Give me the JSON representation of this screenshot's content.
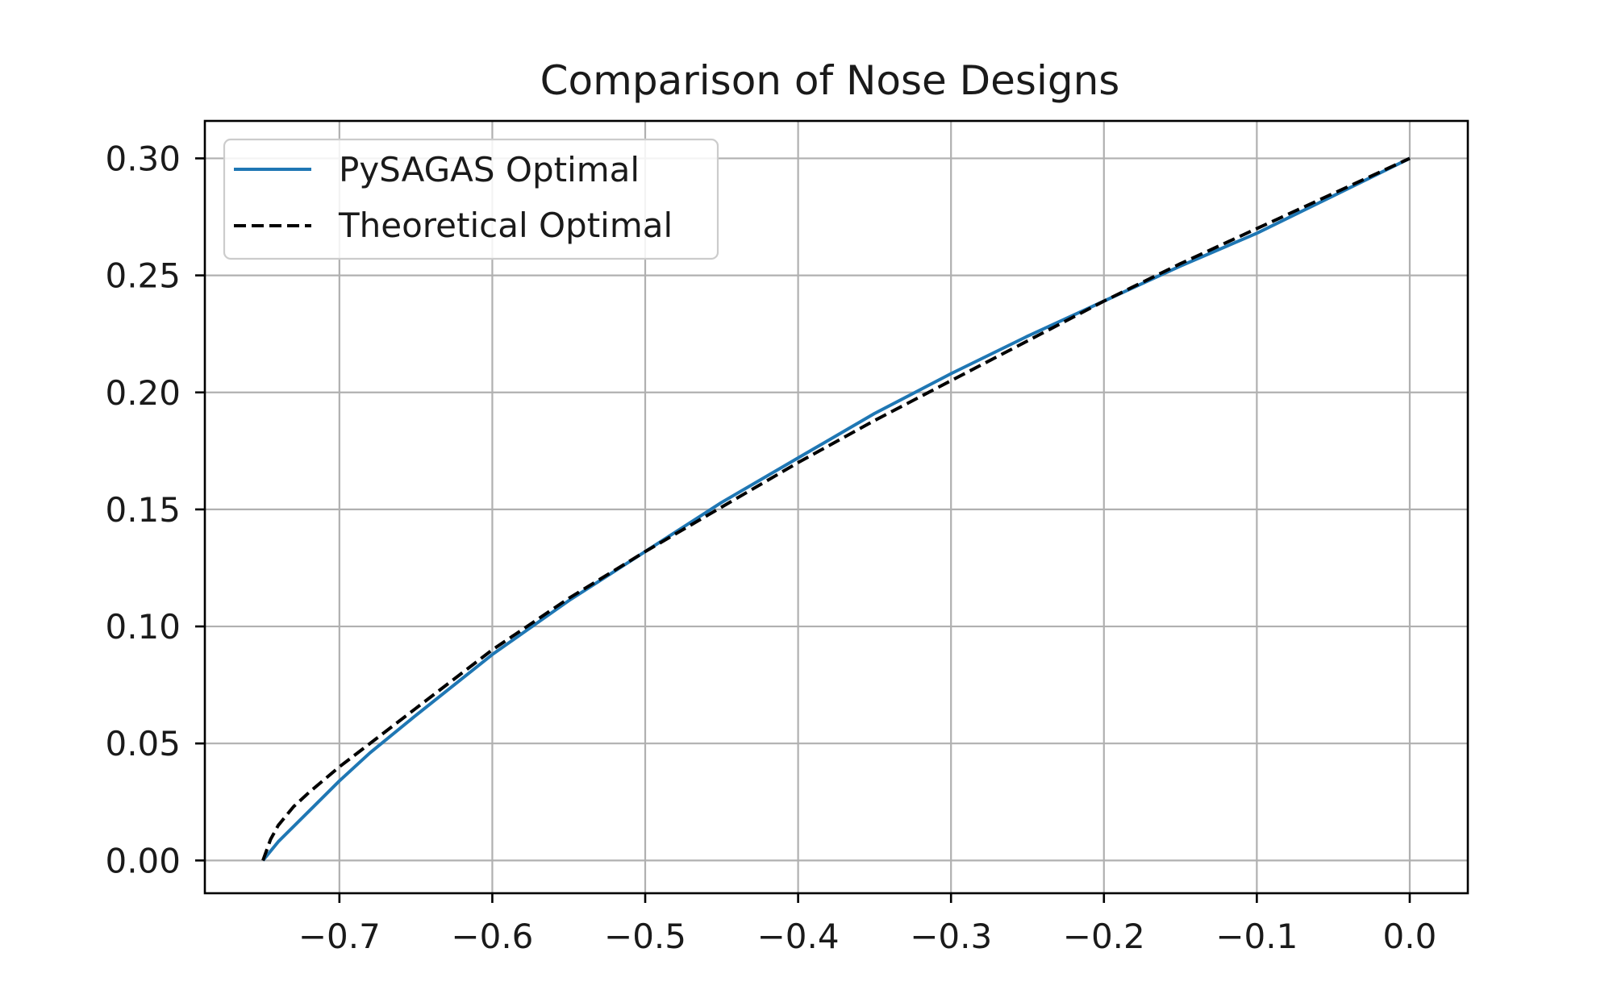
{
  "chart_data": {
    "type": "line",
    "title": "Comparison of Nose Designs",
    "xlabel": "",
    "ylabel": "",
    "xlim": [
      -0.788,
      0.038
    ],
    "ylim": [
      -0.014,
      0.316
    ],
    "x_ticks": [
      -0.7,
      -0.6,
      -0.5,
      -0.4,
      -0.3,
      -0.2,
      -0.1,
      0.0
    ],
    "x_tick_labels": [
      "−0.7",
      "−0.6",
      "−0.5",
      "−0.4",
      "−0.3",
      "−0.2",
      "−0.1",
      "0.0"
    ],
    "y_ticks": [
      0.0,
      0.05,
      0.1,
      0.15,
      0.2,
      0.25,
      0.3
    ],
    "y_tick_labels": [
      "0.00",
      "0.05",
      "0.10",
      "0.15",
      "0.20",
      "0.25",
      "0.30"
    ],
    "grid": true,
    "legend_position": "upper-left",
    "series": [
      {
        "name": "PySAGAS Optimal",
        "color": "#1f77b4",
        "style": "solid",
        "x": [
          -0.75,
          -0.74,
          -0.72,
          -0.7,
          -0.68,
          -0.65,
          -0.6,
          -0.55,
          -0.5,
          -0.45,
          -0.4,
          -0.35,
          -0.3,
          -0.25,
          -0.2,
          -0.15,
          -0.1,
          -0.05,
          0.0
        ],
        "y": [
          0.0,
          0.008,
          0.021,
          0.034,
          0.046,
          0.062,
          0.088,
          0.111,
          0.132,
          0.153,
          0.172,
          0.191,
          0.208,
          0.224,
          0.239,
          0.254,
          0.268,
          0.284,
          0.3
        ]
      },
      {
        "name": "Theoretical Optimal",
        "color": "#000000",
        "style": "dashed",
        "x": [
          -0.75,
          -0.745,
          -0.74,
          -0.73,
          -0.72,
          -0.7,
          -0.68,
          -0.65,
          -0.6,
          -0.55,
          -0.5,
          -0.45,
          -0.4,
          -0.35,
          -0.3,
          -0.25,
          -0.2,
          -0.15,
          -0.1,
          -0.05,
          0.0
        ],
        "y": [
          0.0,
          0.009,
          0.015,
          0.023,
          0.029,
          0.04,
          0.05,
          0.065,
          0.09,
          0.112,
          0.132,
          0.151,
          0.17,
          0.188,
          0.205,
          0.222,
          0.239,
          0.255,
          0.27,
          0.285,
          0.3
        ]
      }
    ]
  }
}
